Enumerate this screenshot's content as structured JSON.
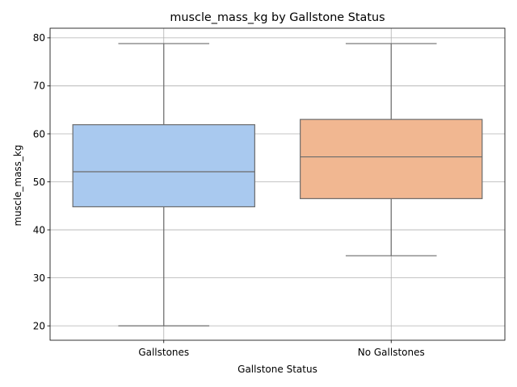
{
  "chart_data": {
    "type": "box",
    "title": "muscle_mass_kg by Gallstone Status",
    "xlabel": "Gallstone Status",
    "ylabel": "muscle_mass_kg",
    "ylim": [
      17,
      82
    ],
    "yticks": [
      20,
      30,
      40,
      50,
      60,
      70,
      80
    ],
    "grid": true,
    "categories": [
      "Gallstones",
      "No Gallstones"
    ],
    "boxes": [
      {
        "category": "Gallstones",
        "whisker_low": 20.0,
        "q1": 44.8,
        "median": 52.1,
        "q3": 61.9,
        "whisker_high": 78.8,
        "color": "#a9c9ef"
      },
      {
        "category": "No Gallstones",
        "whisker_low": 34.6,
        "q1": 46.5,
        "median": 55.2,
        "q3": 63.0,
        "whisker_high": 78.8,
        "color": "#f1b791"
      }
    ]
  }
}
